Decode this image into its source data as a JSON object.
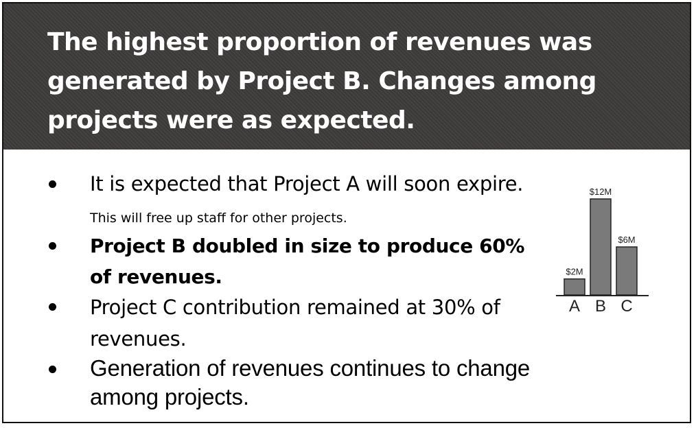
{
  "slide": {
    "headline": "The highest proportion of revenues was generated by Project B.  Changes among projects were as expected.",
    "bullets": [
      {
        "text": "It is expected that Project A will soon expire.",
        "note": "This will free up staff for other projects."
      },
      {
        "text": "Project B doubled in size to produce 60% of revenues."
      },
      {
        "text": "Project C contribution remained at 30% of revenues."
      },
      {
        "text": "Generation of revenues continues to change among projects."
      }
    ]
  },
  "chart_data": {
    "type": "bar",
    "categories": [
      "A",
      "B",
      "C"
    ],
    "values": [
      2,
      12,
      6
    ],
    "data_labels": [
      "$2M",
      "$12M",
      "$6M"
    ],
    "title": "",
    "xlabel": "",
    "ylabel": "",
    "ylim": [
      0,
      12
    ],
    "grid": false,
    "bar_color": "#7a7a7a"
  }
}
